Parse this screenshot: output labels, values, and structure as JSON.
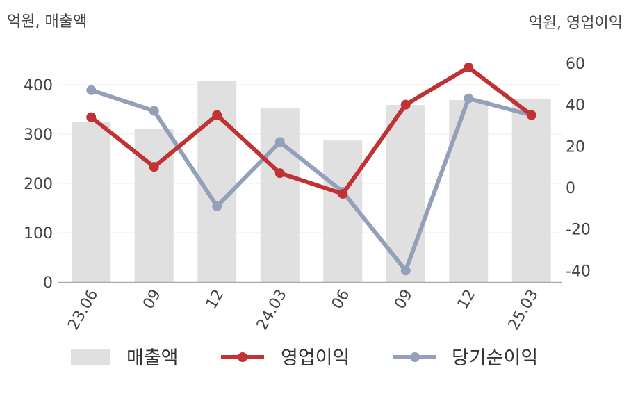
{
  "chart_data": {
    "type": "bar",
    "categories": [
      "23.06",
      "09",
      "12",
      "24.03",
      "06",
      "09",
      "12",
      "25.03"
    ],
    "left_unit_label": "억원, 매출액",
    "right_unit_label": "억원, 영업이익",
    "y_left": {
      "min": 0,
      "max": 400,
      "ticks": [
        0,
        100,
        200,
        300,
        400
      ]
    },
    "y_right": {
      "min": -40,
      "max": 60,
      "ticks": [
        -40,
        -20,
        0,
        20,
        40,
        60
      ]
    },
    "series": [
      {
        "name": "매출액",
        "type": "bar",
        "axis": "left",
        "color": "#e0e0e0",
        "values": [
          325,
          311,
          408,
          352,
          287,
          359,
          369,
          371
        ]
      },
      {
        "name": "영업이익",
        "type": "line",
        "axis": "right",
        "color": "#c03234",
        "values": [
          34,
          10,
          35,
          7,
          -3,
          40,
          58,
          35
        ]
      },
      {
        "name": "당기순이익",
        "type": "line",
        "axis": "right",
        "color": "#94a0ba",
        "values": [
          47,
          37,
          -9,
          22,
          -2,
          -40,
          43,
          35
        ]
      }
    ],
    "legend_position": "bottom",
    "grid": true
  }
}
